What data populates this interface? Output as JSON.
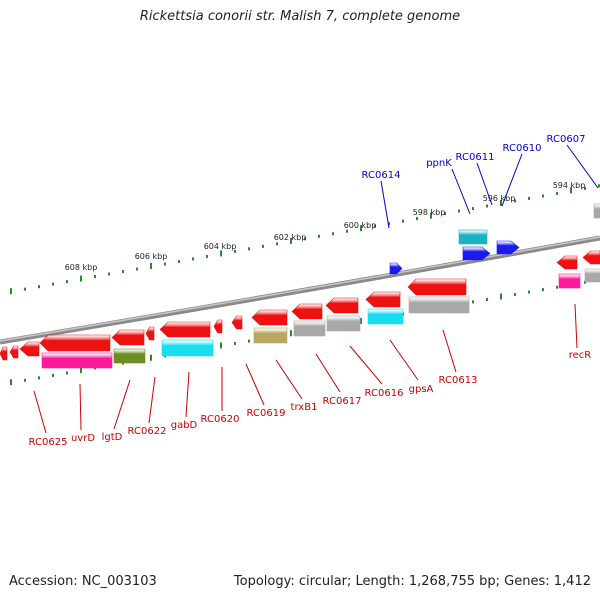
{
  "title": "Rickettsia conorii str. Malish 7, complete genome",
  "footer": {
    "accession": "Accession: NC_003103",
    "summary": "Topology: circular; Length: 1,268,755 bp; Genes: 1,412"
  },
  "ticks": [
    {
      "label": "594 kbp",
      "kbp": 594
    },
    {
      "label": "596 kbp",
      "kbp": 596
    },
    {
      "label": "598 kbp",
      "kbp": 598
    },
    {
      "label": "600 kbp",
      "kbp": 600
    },
    {
      "label": "602 kbp",
      "kbp": 602
    },
    {
      "label": "604 kbp",
      "kbp": 604
    },
    {
      "label": "606 kbp",
      "kbp": 606
    },
    {
      "label": "608 kbp",
      "kbp": 608
    }
  ],
  "genes_forward": [
    {
      "label": "RC0607",
      "strand": "+",
      "color": "#0000cc"
    },
    {
      "label": "RC0610",
      "strand": "+",
      "color": "#0000cc"
    },
    {
      "label": "RC0611",
      "strand": "+",
      "color": "#0000cc"
    },
    {
      "label": "ppnK",
      "strand": "+",
      "color": "#0000cc"
    },
    {
      "label": "RC0614",
      "strand": "+",
      "color": "#0000cc"
    }
  ],
  "genes_reverse": [
    {
      "label": "recR",
      "strand": "-",
      "color": "#cc0000"
    },
    {
      "label": "RC0613",
      "strand": "-",
      "color": "#cc0000"
    },
    {
      "label": "gpsA",
      "strand": "-",
      "color": "#cc0000"
    },
    {
      "label": "RC0616",
      "strand": "-",
      "color": "#cc0000"
    },
    {
      "label": "RC0617",
      "strand": "-",
      "color": "#cc0000"
    },
    {
      "label": "trxB1",
      "strand": "-",
      "color": "#cc0000"
    },
    {
      "label": "RC0619",
      "strand": "-",
      "color": "#cc0000"
    },
    {
      "label": "RC0620",
      "strand": "-",
      "color": "#cc0000"
    },
    {
      "label": "gabD",
      "strand": "-",
      "color": "#cc0000"
    },
    {
      "label": "RC0622",
      "strand": "-",
      "color": "#cc0000"
    },
    {
      "label": "lgtD",
      "strand": "-",
      "color": "#cc0000"
    },
    {
      "label": "uvrD",
      "strand": "-",
      "color": "#cc0000"
    },
    {
      "label": "RC0625",
      "strand": "-",
      "color": "#cc0000"
    }
  ],
  "colors": {
    "backbone": "#8a8a8a",
    "forward_gene": "#1a1aee",
    "reverse_gene": "#ee1111",
    "tick": "#2a8a2a",
    "cog_cyan": "#18dcf0",
    "cog_magenta": "#ff1a9c",
    "cog_olive": "#6e8c22",
    "cog_khaki": "#bba860",
    "cog_gray": "#a8a8a8",
    "cog_teal": "#18b4c4"
  }
}
